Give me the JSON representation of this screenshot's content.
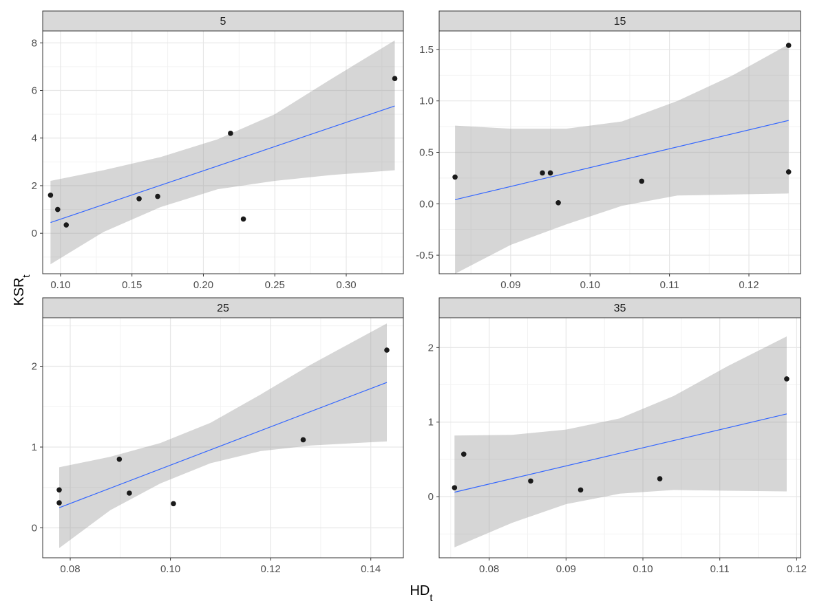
{
  "x_title": {
    "main": "HD",
    "sub": "t"
  },
  "y_title": {
    "main": "KSR",
    "sub": "t"
  },
  "chart_data": [
    {
      "type": "scatter",
      "facet": "5",
      "xlim": [
        0.0875,
        0.34
      ],
      "ylim": [
        -1.7,
        8.5
      ],
      "x_ticks": [
        0.1,
        0.15,
        0.2,
        0.25,
        0.3
      ],
      "x_tick_labels": [
        "0.10",
        "0.15",
        "0.20",
        "0.25",
        "0.30"
      ],
      "y_ticks": [
        0,
        2,
        4,
        6,
        8
      ],
      "y_tick_labels": [
        "0",
        "2",
        "4",
        "6",
        "8"
      ],
      "points": [
        [
          0.093,
          1.6
        ],
        [
          0.098,
          1.0
        ],
        [
          0.104,
          0.35
        ],
        [
          0.155,
          1.45
        ],
        [
          0.168,
          1.55
        ],
        [
          0.219,
          4.2
        ],
        [
          0.228,
          0.6
        ],
        [
          0.334,
          6.5
        ]
      ],
      "fit_line": [
        [
          0.093,
          0.45
        ],
        [
          0.334,
          5.35
        ]
      ],
      "ci_band": [
        [
          0.093,
          -1.3,
          2.2
        ],
        [
          0.13,
          0.05,
          2.65
        ],
        [
          0.17,
          1.1,
          3.2
        ],
        [
          0.21,
          1.85,
          3.95
        ],
        [
          0.25,
          2.2,
          5.0
        ],
        [
          0.29,
          2.45,
          6.5
        ],
        [
          0.334,
          2.65,
          8.1
        ]
      ]
    },
    {
      "type": "scatter",
      "facet": "15",
      "xlim": [
        0.081,
        0.1265
      ],
      "ylim": [
        -0.68,
        1.68
      ],
      "x_ticks": [
        0.09,
        0.1,
        0.11,
        0.12
      ],
      "x_tick_labels": [
        "0.09",
        "0.10",
        "0.11",
        "0.12"
      ],
      "y_ticks": [
        -0.5,
        0.0,
        0.5,
        1.0,
        1.5
      ],
      "y_tick_labels": [
        "-0.5",
        "0.0",
        "0.5",
        "1.0",
        "1.5"
      ],
      "points": [
        [
          0.083,
          0.26
        ],
        [
          0.094,
          0.3
        ],
        [
          0.095,
          0.3
        ],
        [
          0.096,
          0.01
        ],
        [
          0.1065,
          0.22
        ],
        [
          0.125,
          1.54
        ],
        [
          0.125,
          0.31
        ]
      ],
      "fit_line": [
        [
          0.083,
          0.04
        ],
        [
          0.125,
          0.81
        ]
      ],
      "ci_band": [
        [
          0.083,
          -0.68,
          0.76
        ],
        [
          0.09,
          -0.4,
          0.73
        ],
        [
          0.097,
          -0.2,
          0.73
        ],
        [
          0.104,
          -0.02,
          0.8
        ],
        [
          0.111,
          0.08,
          1.0
        ],
        [
          0.118,
          0.09,
          1.25
        ],
        [
          0.125,
          0.1,
          1.55
        ]
      ]
    },
    {
      "type": "scatter",
      "facet": "25",
      "xlim": [
        0.0745,
        0.1465
      ],
      "ylim": [
        -0.37,
        2.6
      ],
      "x_ticks": [
        0.08,
        0.1,
        0.12,
        0.14
      ],
      "x_tick_labels": [
        "0.08",
        "0.10",
        "0.12",
        "0.14"
      ],
      "y_ticks": [
        0,
        1,
        2
      ],
      "y_tick_labels": [
        "0",
        "1",
        "2"
      ],
      "points": [
        [
          0.0778,
          0.47
        ],
        [
          0.0778,
          0.31
        ],
        [
          0.0898,
          0.85
        ],
        [
          0.0918,
          0.43
        ],
        [
          0.1006,
          0.3
        ],
        [
          0.1265,
          1.09
        ],
        [
          0.1432,
          2.2
        ]
      ],
      "fit_line": [
        [
          0.0778,
          0.25
        ],
        [
          0.1432,
          1.8
        ]
      ],
      "ci_band": [
        [
          0.0778,
          -0.25,
          0.75
        ],
        [
          0.088,
          0.22,
          0.88
        ],
        [
          0.098,
          0.55,
          1.05
        ],
        [
          0.108,
          0.8,
          1.3
        ],
        [
          0.118,
          0.95,
          1.65
        ],
        [
          0.128,
          1.02,
          2.02
        ],
        [
          0.1432,
          1.07,
          2.53
        ]
      ]
    },
    {
      "type": "scatter",
      "facet": "35",
      "xlim": [
        0.0735,
        0.1205
      ],
      "ylim": [
        -0.82,
        2.4
      ],
      "x_ticks": [
        0.08,
        0.09,
        0.1,
        0.11,
        0.12
      ],
      "x_tick_labels": [
        "0.08",
        "0.09",
        "0.10",
        "0.11",
        "0.12"
      ],
      "y_ticks": [
        0,
        1,
        2
      ],
      "y_tick_labels": [
        "0",
        "1",
        "2"
      ],
      "points": [
        [
          0.0755,
          0.12
        ],
        [
          0.0767,
          0.57
        ],
        [
          0.0854,
          0.21
        ],
        [
          0.0919,
          0.09
        ],
        [
          0.1022,
          0.24
        ],
        [
          0.1187,
          1.58
        ]
      ],
      "fit_line": [
        [
          0.0755,
          0.06
        ],
        [
          0.1187,
          1.11
        ]
      ],
      "ci_band": [
        [
          0.0755,
          -0.68,
          0.82
        ],
        [
          0.083,
          -0.35,
          0.83
        ],
        [
          0.09,
          -0.1,
          0.9
        ],
        [
          0.097,
          0.04,
          1.05
        ],
        [
          0.104,
          0.09,
          1.35
        ],
        [
          0.111,
          0.08,
          1.75
        ],
        [
          0.1187,
          0.07,
          2.15
        ]
      ]
    }
  ]
}
